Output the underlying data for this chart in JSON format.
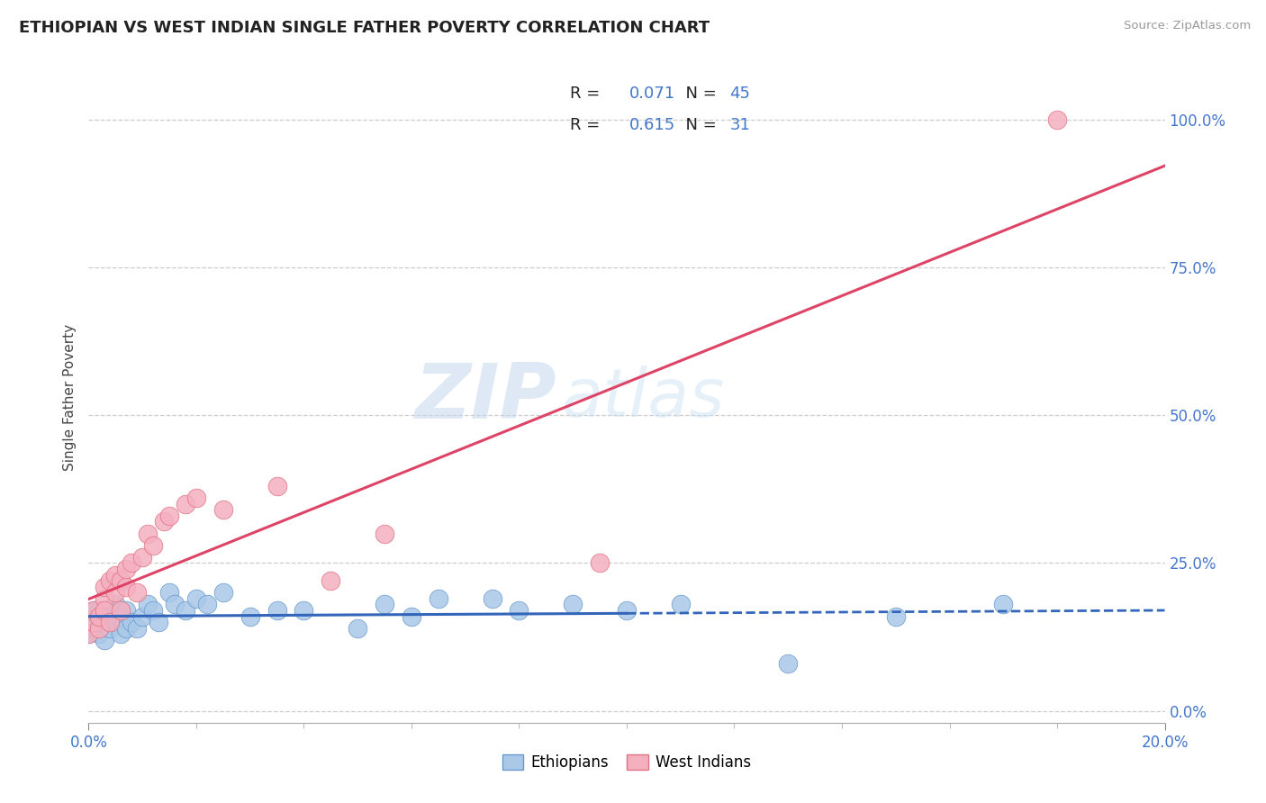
{
  "title": "ETHIOPIAN VS WEST INDIAN SINGLE FATHER POVERTY CORRELATION CHART",
  "source": "Source: ZipAtlas.com",
  "ylabel": "Single Father Poverty",
  "watermark_zip": "ZIP",
  "watermark_atlas": "atlas",
  "eth_R": "0.071",
  "eth_N": "45",
  "wi_R": "0.615",
  "wi_N": "31",
  "eth_color_fill": "#aac8e8",
  "eth_color_edge": "#6699cc",
  "wi_color_fill": "#f5b0c0",
  "wi_color_edge": "#e07080",
  "line_eth_color": "#3366bb",
  "line_wi_color": "#dd4466",
  "text_blue": "#4477cc",
  "text_dark": "#222222",
  "text_gray": "#999999",
  "grid_color": "#cccccc",
  "xlim": [
    0.0,
    0.2
  ],
  "ylim": [
    -0.02,
    1.08
  ],
  "yticks": [
    0.0,
    0.25,
    0.5,
    0.75,
    1.0
  ],
  "eth_x": [
    0.0,
    0.0,
    0.001,
    0.001,
    0.002,
    0.002,
    0.002,
    0.003,
    0.003,
    0.003,
    0.004,
    0.004,
    0.005,
    0.005,
    0.006,
    0.006,
    0.007,
    0.007,
    0.008,
    0.009,
    0.01,
    0.011,
    0.012,
    0.013,
    0.015,
    0.016,
    0.018,
    0.02,
    0.022,
    0.025,
    0.03,
    0.035,
    0.04,
    0.05,
    0.055,
    0.06,
    0.065,
    0.075,
    0.08,
    0.09,
    0.1,
    0.11,
    0.13,
    0.15,
    0.17
  ],
  "eth_y": [
    0.13,
    0.16,
    0.14,
    0.17,
    0.15,
    0.17,
    0.13,
    0.15,
    0.17,
    0.12,
    0.14,
    0.16,
    0.15,
    0.18,
    0.13,
    0.16,
    0.14,
    0.17,
    0.15,
    0.14,
    0.16,
    0.18,
    0.17,
    0.15,
    0.2,
    0.18,
    0.17,
    0.19,
    0.18,
    0.2,
    0.16,
    0.17,
    0.17,
    0.14,
    0.18,
    0.16,
    0.19,
    0.19,
    0.17,
    0.18,
    0.17,
    0.18,
    0.08,
    0.16,
    0.18
  ],
  "wi_x": [
    0.0,
    0.001,
    0.001,
    0.002,
    0.002,
    0.003,
    0.003,
    0.003,
    0.004,
    0.004,
    0.005,
    0.005,
    0.006,
    0.006,
    0.007,
    0.007,
    0.008,
    0.009,
    0.01,
    0.011,
    0.012,
    0.014,
    0.015,
    0.018,
    0.02,
    0.025,
    0.035,
    0.045,
    0.055,
    0.095,
    0.18
  ],
  "wi_y": [
    0.13,
    0.15,
    0.17,
    0.14,
    0.16,
    0.19,
    0.17,
    0.21,
    0.15,
    0.22,
    0.2,
    0.23,
    0.17,
    0.22,
    0.21,
    0.24,
    0.25,
    0.2,
    0.26,
    0.3,
    0.28,
    0.32,
    0.33,
    0.35,
    0.36,
    0.34,
    0.38,
    0.22,
    0.3,
    0.25,
    1.0
  ]
}
